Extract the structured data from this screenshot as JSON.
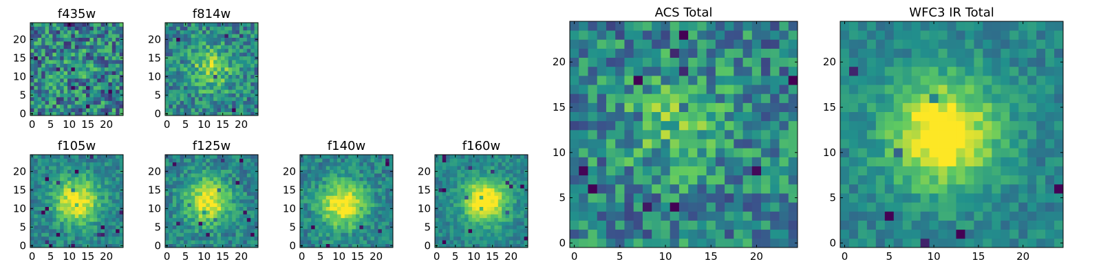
{
  "colormap": "viridis",
  "colors": {
    "viridis_stops": [
      "#440154",
      "#3b528b",
      "#21918c",
      "#5ec962",
      "#fde725"
    ],
    "axes_edge": "#000000",
    "background": "#ffffff"
  },
  "chart_data": [
    {
      "type": "heatmap",
      "title": "f435w",
      "grid_size": 25,
      "xlim": [
        -0.5,
        24.5
      ],
      "ylim": [
        -0.5,
        24.5
      ],
      "xticks": [
        0,
        5,
        10,
        15,
        20
      ],
      "yticks": [
        0,
        5,
        10,
        15,
        20
      ],
      "origin": "lower",
      "colormap": "viridis",
      "peak_center": [
        12,
        12
      ],
      "peak_strength": 0.04,
      "noise_level": 0.3
    },
    {
      "type": "heatmap",
      "title": "f814w",
      "grid_size": 25,
      "xlim": [
        -0.5,
        24.5
      ],
      "ylim": [
        -0.5,
        24.5
      ],
      "xticks": [
        0,
        5,
        10,
        15,
        20
      ],
      "yticks": [
        0,
        5,
        10,
        15,
        20
      ],
      "origin": "lower",
      "colormap": "viridis",
      "peak_center": [
        12,
        12
      ],
      "peak_strength": 0.35,
      "noise_level": 0.22
    },
    {
      "type": "heatmap",
      "title": "f105w",
      "grid_size": 25,
      "xlim": [
        -0.5,
        24.5
      ],
      "ylim": [
        -0.5,
        24.5
      ],
      "xticks": [
        0,
        5,
        10,
        15,
        20
      ],
      "yticks": [
        0,
        5,
        10,
        15,
        20
      ],
      "origin": "lower",
      "colormap": "viridis",
      "peak_center": [
        12,
        12
      ],
      "peak_strength": 0.6,
      "noise_level": 0.14
    },
    {
      "type": "heatmap",
      "title": "f125w",
      "grid_size": 25,
      "xlim": [
        -0.5,
        24.5
      ],
      "ylim": [
        -0.5,
        24.5
      ],
      "xticks": [
        0,
        5,
        10,
        15,
        20
      ],
      "yticks": [
        0,
        5,
        10,
        15,
        20
      ],
      "origin": "lower",
      "colormap": "viridis",
      "peak_center": [
        11,
        12
      ],
      "peak_strength": 0.55,
      "noise_level": 0.16
    },
    {
      "type": "heatmap",
      "title": "f140w",
      "grid_size": 25,
      "xlim": [
        -0.5,
        24.5
      ],
      "ylim": [
        -0.5,
        24.5
      ],
      "xticks": [
        0,
        5,
        10,
        15,
        20
      ],
      "yticks": [
        0,
        5,
        10,
        15,
        20
      ],
      "origin": "lower",
      "colormap": "viridis",
      "peak_center": [
        11,
        11
      ],
      "peak_strength": 0.6,
      "noise_level": 0.15
    },
    {
      "type": "heatmap",
      "title": "f160w",
      "grid_size": 25,
      "xlim": [
        -0.5,
        24.5
      ],
      "ylim": [
        -0.5,
        24.5
      ],
      "xticks": [
        0,
        5,
        10,
        15,
        20
      ],
      "yticks": [
        0,
        5,
        10,
        15,
        20
      ],
      "origin": "lower",
      "colormap": "viridis",
      "peak_center": [
        13,
        12
      ],
      "peak_strength": 0.65,
      "noise_level": 0.12
    },
    {
      "type": "heatmap",
      "title": "ACS Total",
      "grid_size": 25,
      "xlim": [
        -0.5,
        24.5
      ],
      "ylim": [
        -0.5,
        24.5
      ],
      "xticks": [
        0,
        5,
        10,
        15,
        20
      ],
      "yticks": [
        0,
        5,
        10,
        15,
        20
      ],
      "origin": "lower",
      "colormap": "viridis",
      "peak_center": [
        11,
        13
      ],
      "peak_strength": 0.25,
      "noise_level": 0.25
    },
    {
      "type": "heatmap",
      "title": "WFC3 IR Total",
      "grid_size": 25,
      "xlim": [
        -0.5,
        24.5
      ],
      "ylim": [
        -0.5,
        24.5
      ],
      "xticks": [
        0,
        5,
        10,
        15,
        20
      ],
      "yticks": [
        0,
        5,
        10,
        15,
        20
      ],
      "origin": "lower",
      "colormap": "viridis",
      "peak_center": [
        11,
        12
      ],
      "peak_strength": 0.65,
      "noise_level": 0.12
    }
  ]
}
